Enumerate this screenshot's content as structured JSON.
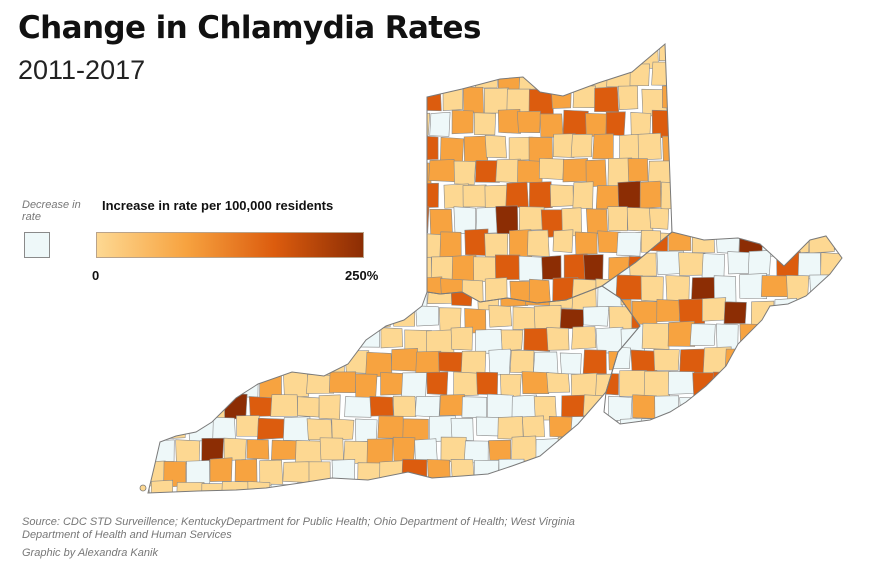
{
  "title": "Change in Chlamydia Rates",
  "subtitle": "2011-2017",
  "legend": {
    "decrease_label": "Decrease in rate",
    "increase_title": "Increase in rate per 100,000 residents",
    "min_label": "0",
    "max_label": "250%",
    "decrease_color": "#eef8f9",
    "gradient_colors": [
      "#fdd892",
      "#f7a340",
      "#dc5c0e",
      "#8c2d04"
    ],
    "border_color": "#8a8a8a"
  },
  "source": "Source: CDC STD Surveillence; KentuckyDepartment for Public Health; Ohio Department of Health; West Virginia Department of Health and Human Services",
  "credit": "Graphic by Alexandra Kanik"
}
